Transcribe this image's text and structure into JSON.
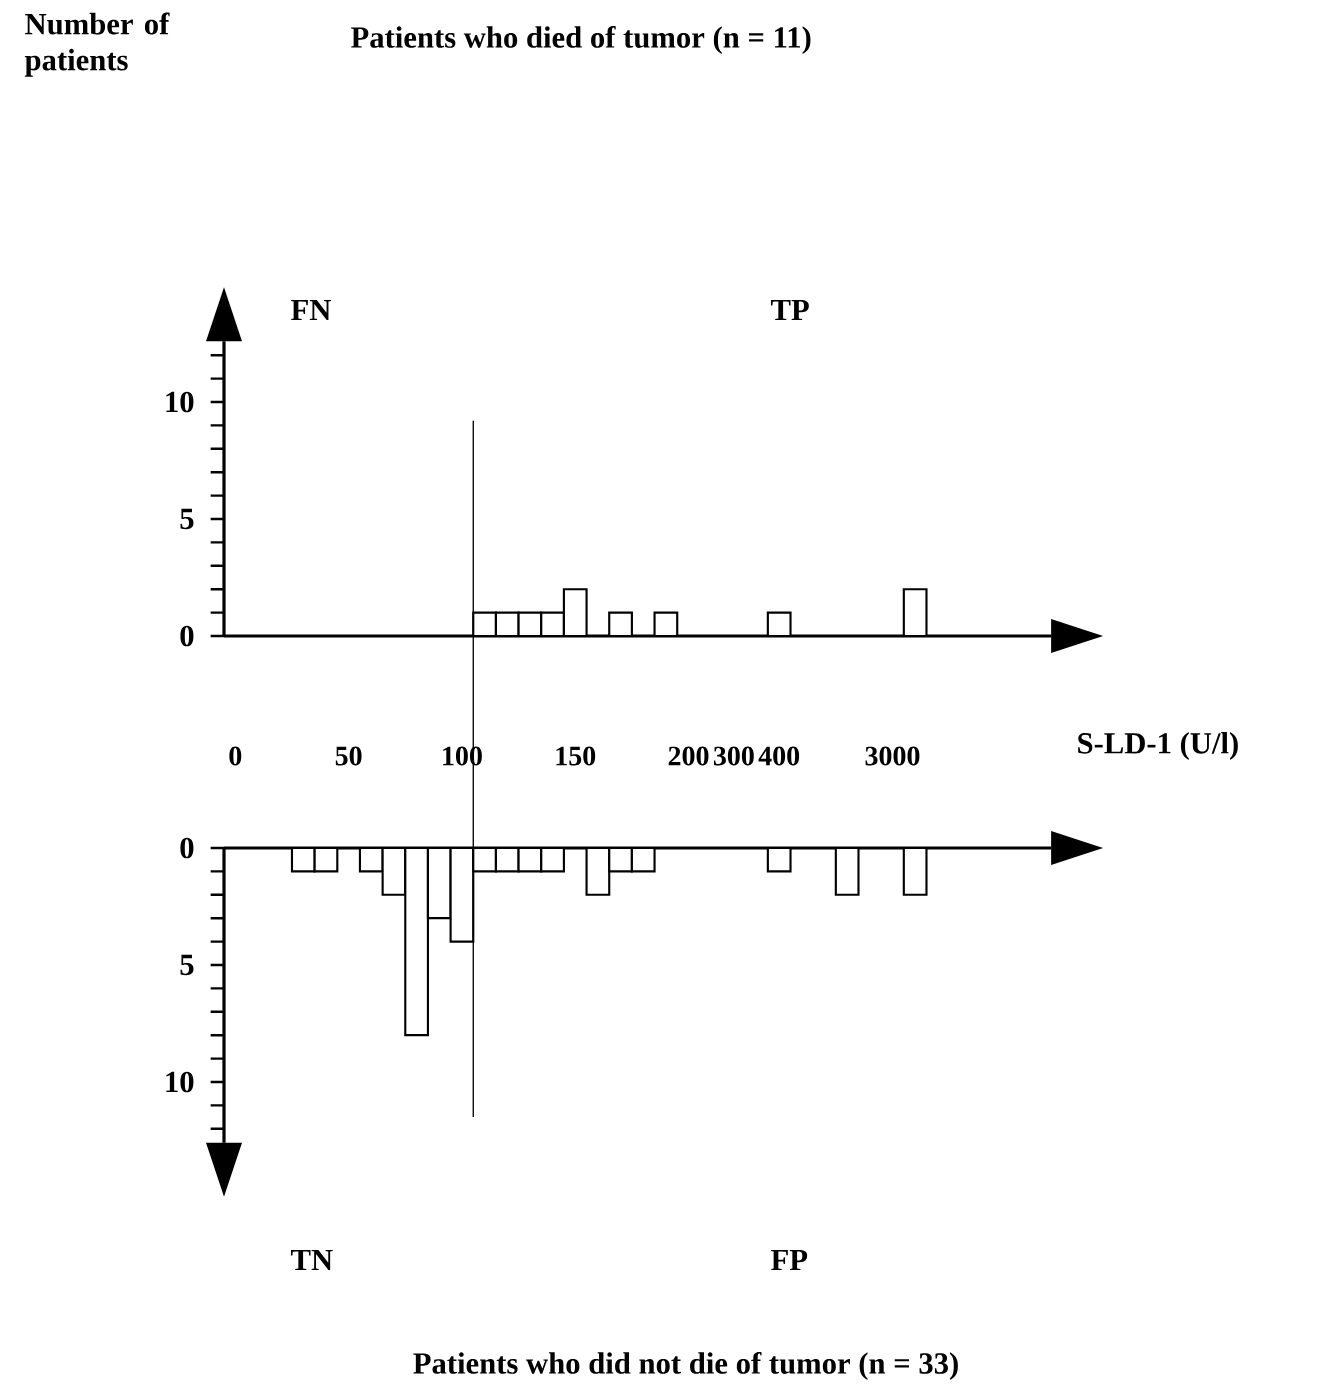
{
  "chart_data": [
    {
      "type": "bar",
      "title": "Patients who died of tumor (n = 11)",
      "ylabel": "Number of patients",
      "xlabel": "S-LD-1 (U/l)",
      "categories": [
        "0",
        null,
        null,
        null,
        null,
        "50",
        null,
        null,
        null,
        null,
        "100",
        null,
        null,
        null,
        null,
        "150",
        null,
        null,
        null,
        null,
        "200",
        null,
        "300",
        null,
        "400",
        null,
        null,
        null,
        null,
        "3000",
        null,
        null,
        null
      ],
      "values": [
        null,
        null,
        null,
        null,
        null,
        null,
        null,
        null,
        null,
        null,
        null,
        1,
        1,
        1,
        1,
        2,
        null,
        1,
        null,
        1,
        null,
        null,
        null,
        null,
        1,
        null,
        null,
        null,
        null,
        null,
        2,
        null,
        null
      ],
      "color": "#ffffff",
      "ylim": [
        0,
        12.6
      ],
      "yticks": [
        0,
        {
          "value": 1,
          "label": null
        },
        {
          "value": 2,
          "label": null
        },
        {
          "value": 3,
          "label": null
        },
        {
          "value": 4,
          "label": null
        },
        5,
        {
          "value": 6,
          "label": null
        },
        {
          "value": 7,
          "label": null
        },
        {
          "value": 8,
          "label": null
        },
        {
          "value": 9,
          "label": null
        },
        10,
        {
          "value": 11,
          "label": null
        },
        {
          "value": 12,
          "label": null
        }
      ],
      "annotations": [
        "FN",
        "TP"
      ]
    },
    {
      "type": "bar",
      "title": "Patients who did not die of tumor (n = 33)",
      "categories": [
        "0",
        null,
        null,
        null,
        null,
        "50",
        null,
        null,
        null,
        null,
        "100",
        null,
        null,
        null,
        null,
        "150",
        null,
        null,
        null,
        null,
        "200",
        null,
        "300",
        null,
        "400",
        null,
        null,
        null,
        null,
        "3000",
        null,
        null,
        null
      ],
      "values": [
        null,
        null,
        null,
        1,
        1,
        null,
        1,
        2,
        8,
        3,
        4,
        1,
        1,
        1,
        1,
        null,
        2,
        1,
        1,
        null,
        null,
        null,
        null,
        null,
        1,
        null,
        null,
        2,
        null,
        null,
        2,
        null,
        null
      ],
      "color": "#ffffff",
      "ylim": [
        12.6,
        0
      ],
      "yticks": [
        0,
        {
          "value": 1,
          "label": null
        },
        {
          "value": 2,
          "label": null
        },
        {
          "value": 3,
          "label": null
        },
        {
          "value": 4,
          "label": null
        },
        5,
        {
          "value": 6,
          "label": null
        },
        {
          "value": 7,
          "label": null
        },
        {
          "value": 8,
          "label": null
        },
        {
          "value": 9,
          "label": null
        },
        10,
        {
          "value": 11,
          "label": null
        },
        {
          "value": 12,
          "label": null
        }
      ],
      "tick_labels": "y",
      "annotations": [
        "TN",
        "FP"
      ]
    }
  ]
}
